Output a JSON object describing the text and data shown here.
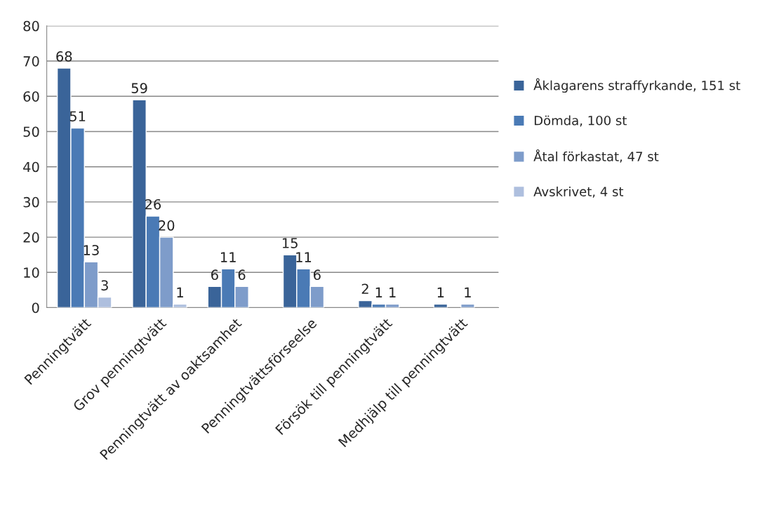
{
  "chart_data": {
    "type": "bar",
    "categories": [
      "Penningtvätt",
      "Grov penningtvätt",
      "Penningtvätt av oaktsamhet",
      "Penningtvättsförseelse",
      "Försök till penningtvätt",
      "Medhjälp till penningtvätt"
    ],
    "series": [
      {
        "name": "Åklagarens straffyrkande, 151 st",
        "color": "#3a6499",
        "values": [
          68,
          59,
          6,
          15,
          2,
          1
        ]
      },
      {
        "name": "Dömda, 100 st",
        "color": "#4a7ab5",
        "values": [
          51,
          26,
          11,
          11,
          1,
          null
        ]
      },
      {
        "name": "Åtal förkastat, 47 st",
        "color": "#7e9cca",
        "values": [
          13,
          20,
          6,
          6,
          1,
          1
        ]
      },
      {
        "name": "Avskrivet, 4 st",
        "color": "#aebfde",
        "values": [
          3,
          1,
          null,
          null,
          null,
          null
        ]
      }
    ],
    "ylim": [
      0,
      80
    ],
    "yticks": [
      0,
      10,
      20,
      30,
      40,
      50,
      60,
      70,
      80
    ],
    "grid": "y",
    "legend": "right",
    "data_labels": true
  }
}
